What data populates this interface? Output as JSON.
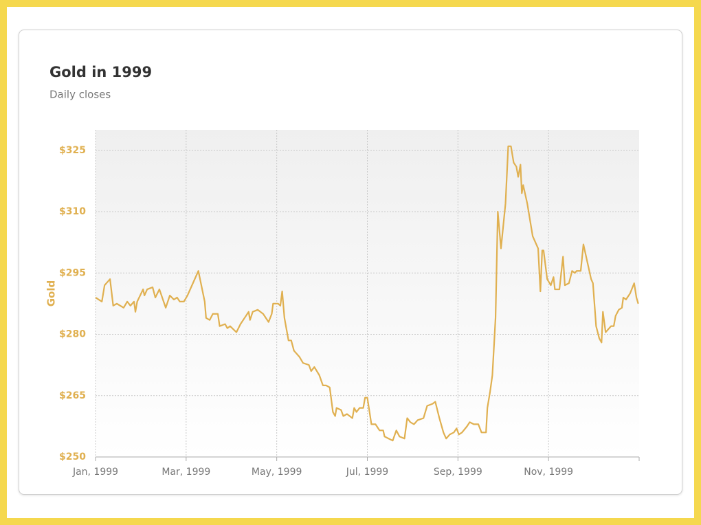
{
  "chart_data": {
    "type": "line",
    "title": "Gold in 1999",
    "subtitle": "Daily closes",
    "y_label": "Gold",
    "x": [
      0,
      0.14,
      0.2,
      0.32,
      0.39,
      0.47,
      0.62,
      0.7,
      0.77,
      0.85,
      0.88,
      0.92,
      1.05,
      1.08,
      1.14,
      1.26,
      1.32,
      1.41,
      1.55,
      1.64,
      1.73,
      1.8,
      1.86,
      1.95,
      2.03,
      2.15,
      2.27,
      2.41,
      2.44,
      2.52,
      2.59,
      2.7,
      2.74,
      2.86,
      2.91,
      2.97,
      3.11,
      3.2,
      3.29,
      3.38,
      3.41,
      3.47,
      3.58,
      3.7,
      3.82,
      3.89,
      3.92,
      4.03,
      4.08,
      4.12,
      4.17,
      4.26,
      4.32,
      4.38,
      4.5,
      4.58,
      4.71,
      4.76,
      4.83,
      4.94,
      5.02,
      5.09,
      5.17,
      5.24,
      5.29,
      5.32,
      5.42,
      5.47,
      5.55,
      5.67,
      5.71,
      5.76,
      5.83,
      5.91,
      5.95,
      6.0,
      6.09,
      6.18,
      6.27,
      6.35,
      6.38,
      6.47,
      6.56,
      6.64,
      6.71,
      6.82,
      6.88,
      6.95,
      7.03,
      7.11,
      7.24,
      7.32,
      7.44,
      7.5,
      7.59,
      7.68,
      7.74,
      7.82,
      7.91,
      7.97,
      8.02,
      8.09,
      8.2,
      8.26,
      8.35,
      8.45,
      8.52,
      8.62,
      8.65,
      8.71,
      8.76,
      8.8,
      8.83,
      8.88,
      8.95,
      9.05,
      9.11,
      9.17,
      9.23,
      9.29,
      9.33,
      9.38,
      9.41,
      9.44,
      9.53,
      9.65,
      9.77,
      9.82,
      9.86,
      9.89,
      9.97,
      10.05,
      10.11,
      10.14,
      10.24,
      10.32,
      10.36,
      10.45,
      10.52,
      10.58,
      10.62,
      10.71,
      10.77,
      10.86,
      10.94,
      10.98,
      11.05,
      11.12,
      11.17,
      11.2,
      11.26,
      11.38,
      11.44,
      11.48,
      11.55,
      11.62,
      11.65,
      11.71,
      11.8,
      11.89,
      11.94,
      11.98
    ],
    "series": [
      {
        "name": "Gold",
        "color": "#e0b050",
        "values": [
          289,
          288,
          292,
          293.5,
          287,
          287.5,
          286.5,
          288,
          287,
          288,
          285.5,
          288,
          291,
          289.5,
          291,
          291.5,
          289,
          291,
          286.5,
          289.5,
          288.5,
          289,
          288,
          288,
          289.5,
          292.5,
          295.5,
          288,
          284,
          283.5,
          285,
          285,
          282,
          282.5,
          281.5,
          282,
          280.5,
          282.5,
          284,
          285.5,
          283.5,
          285.5,
          286,
          285,
          283,
          285,
          287.5,
          287.5,
          287,
          290.5,
          284,
          278.5,
          278.5,
          276,
          274.5,
          273,
          272.5,
          271,
          272,
          270,
          267.5,
          267.5,
          267,
          261,
          260,
          262,
          261.5,
          260,
          260.5,
          259.5,
          262,
          261,
          262,
          262,
          264.5,
          264.5,
          258,
          258,
          256.5,
          256.5,
          255,
          254.5,
          254,
          256.5,
          255,
          254.5,
          259.5,
          258.5,
          258,
          259,
          259.5,
          262.5,
          263,
          263.5,
          259.5,
          256,
          254.5,
          255.5,
          256,
          257,
          255.5,
          256,
          257.5,
          258.5,
          258,
          258,
          256,
          256,
          262,
          266,
          270,
          278,
          284,
          310,
          301,
          312,
          326,
          326,
          322,
          321,
          318.5,
          321.5,
          314.5,
          316.5,
          312,
          304,
          301,
          290.5,
          300.5,
          300.5,
          293.5,
          292,
          294,
          291,
          291,
          299,
          292,
          292.5,
          295.5,
          295,
          295.5,
          295.5,
          302,
          297.5,
          293.5,
          292.5,
          282,
          279,
          278,
          285.5,
          280.5,
          282,
          282,
          284.5,
          286,
          286.5,
          289,
          288.5,
          290,
          292.5,
          289,
          287.5
        ]
      }
    ],
    "xlim": [
      0,
      12
    ],
    "xticks": [
      {
        "value": 0,
        "label": "Jan, 1999"
      },
      {
        "value": 2,
        "label": "Mar, 1999"
      },
      {
        "value": 4,
        "label": "May, 1999"
      },
      {
        "value": 6,
        "label": "Jul, 1999"
      },
      {
        "value": 8,
        "label": "Sep, 1999"
      },
      {
        "value": 10,
        "label": "Nov, 1999"
      }
    ],
    "ylim": [
      250,
      330
    ],
    "yticks": [
      {
        "value": 250,
        "label": "$250"
      },
      {
        "value": 265,
        "label": "$265"
      },
      {
        "value": 280,
        "label": "$280"
      },
      {
        "value": 295,
        "label": "$295"
      },
      {
        "value": 310,
        "label": "$310"
      },
      {
        "value": 325,
        "label": "$325"
      }
    ],
    "grid": true
  }
}
